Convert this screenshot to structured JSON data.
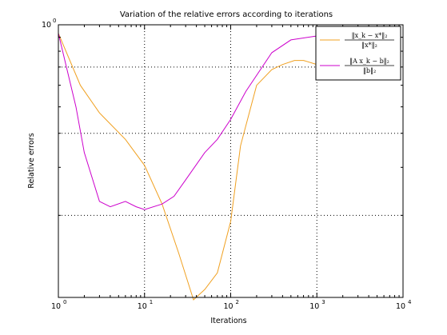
{
  "chart_data": {
    "type": "line",
    "title": "Variation of the relative errors according to iterations",
    "xlabel": "Iterations",
    "ylabel": "Relative errors",
    "xscale": "log",
    "yscale": "log",
    "xlim": [
      1,
      10000
    ],
    "ylim": [
      0.1,
      1
    ],
    "x_ticks": [
      {
        "value": 1,
        "base": "10",
        "exp": "0"
      },
      {
        "value": 10,
        "base": "10",
        "exp": "1"
      },
      {
        "value": 100,
        "base": "10",
        "exp": "2"
      },
      {
        "value": 1000,
        "base": "10",
        "exp": "3"
      },
      {
        "value": 10000,
        "base": "10",
        "exp": "4"
      }
    ],
    "y_ticks": [
      {
        "value": 1,
        "base": "10",
        "exp": "0"
      }
    ],
    "grid": true,
    "legend_position": "top-right",
    "series": [
      {
        "name": "‖x_k − x*‖₂ / ‖x*‖₂",
        "legend_num": "‖x_k − x*‖₂",
        "legend_den": "‖x*‖₂",
        "color": "#f0a020",
        "x": [
          1,
          1.8,
          3,
          6,
          10,
          16,
          25,
          37,
          50,
          70,
          100,
          130,
          200,
          300,
          400,
          550,
          700,
          1000,
          2000
        ],
        "y": [
          0.93,
          0.6,
          0.475,
          0.38,
          0.305,
          0.22,
          0.145,
          0.098,
          0.107,
          0.123,
          0.19,
          0.36,
          0.6,
          0.685,
          0.715,
          0.74,
          0.74,
          0.715,
          0.71
        ]
      },
      {
        "name": "‖A x_k − b‖₂ / ‖b‖₂",
        "legend_num": "‖A x_k − b‖₂",
        "legend_den": "‖b‖₂",
        "color": "#cc00cc",
        "x": [
          1,
          1.6,
          2,
          3,
          4,
          6,
          8,
          10,
          16,
          22,
          30,
          50,
          70,
          100,
          150,
          300,
          500,
          1000,
          2000
        ],
        "y": [
          0.93,
          0.5,
          0.34,
          0.225,
          0.215,
          0.225,
          0.215,
          0.21,
          0.22,
          0.235,
          0.27,
          0.34,
          0.38,
          0.45,
          0.57,
          0.79,
          0.88,
          0.91,
          0.915
        ]
      }
    ]
  }
}
